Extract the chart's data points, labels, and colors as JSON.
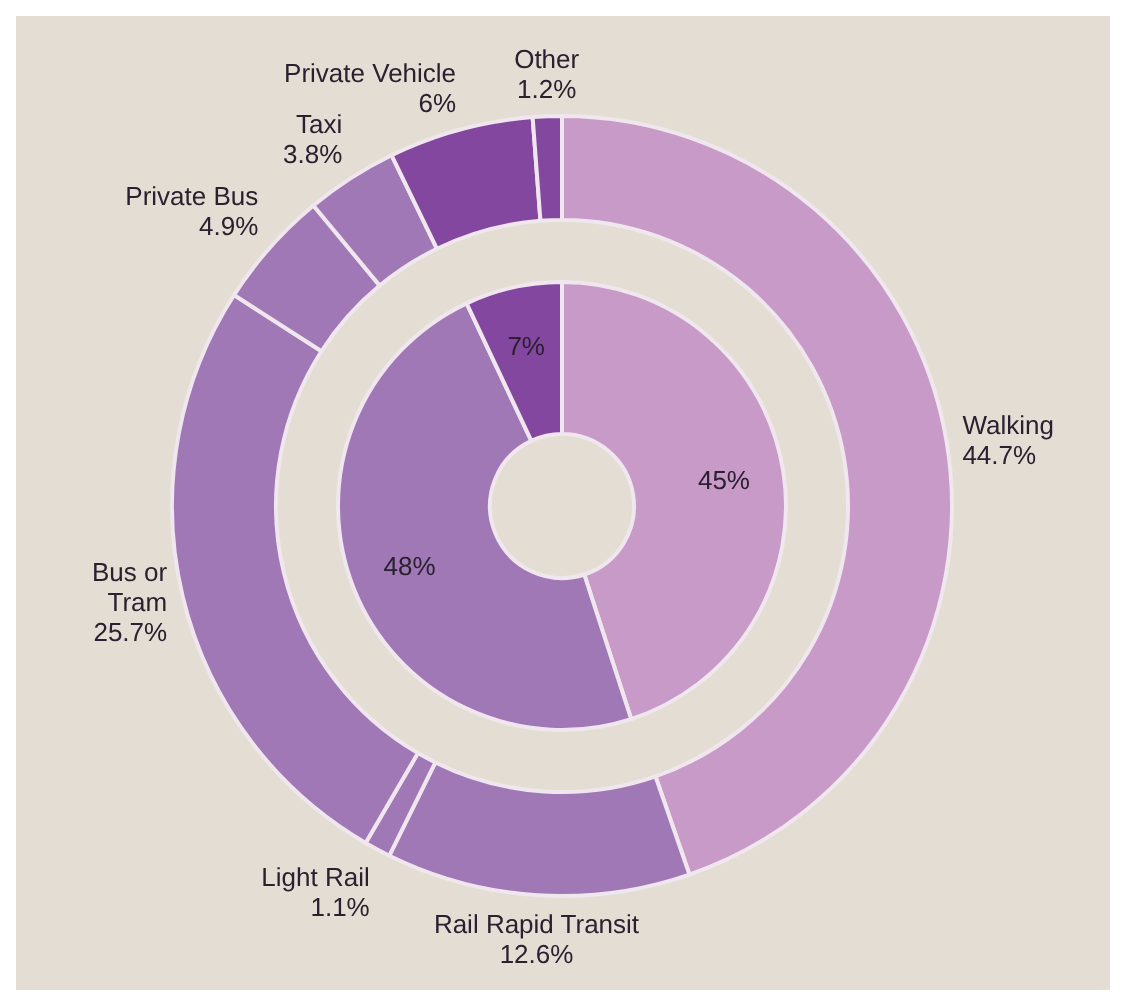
{
  "chart_data": [
    {
      "type": "donut",
      "categories": [
        null,
        null,
        null
      ],
      "values": [
        45,
        48,
        7
      ],
      "colors": [
        "#c89ac8",
        "#a078b6",
        "#8447a0"
      ],
      "value_labels": [
        "45%",
        "48%",
        "7%"
      ]
    },
    {
      "type": "donut",
      "categories": [
        "Walking",
        "Rail Rapid Transit",
        "Light Rail",
        "Bus or Tram",
        "Private Bus",
        "Taxi",
        "Private Vehicle",
        "Other"
      ],
      "values": [
        44.7,
        12.6,
        1.1,
        25.7,
        4.9,
        3.8,
        6,
        1.2
      ],
      "colors": [
        "#c89ac8",
        "#a078b6",
        "#a078b6",
        "#a078b6",
        "#a078b6",
        "#a078b6",
        "#8447a0",
        "#8447a0"
      ],
      "value_labels": [
        "44.7%",
        "12.6%",
        "1.1%",
        "25.7%",
        "4.9%",
        "3.8%",
        "6%",
        "1.2%"
      ]
    }
  ]
}
